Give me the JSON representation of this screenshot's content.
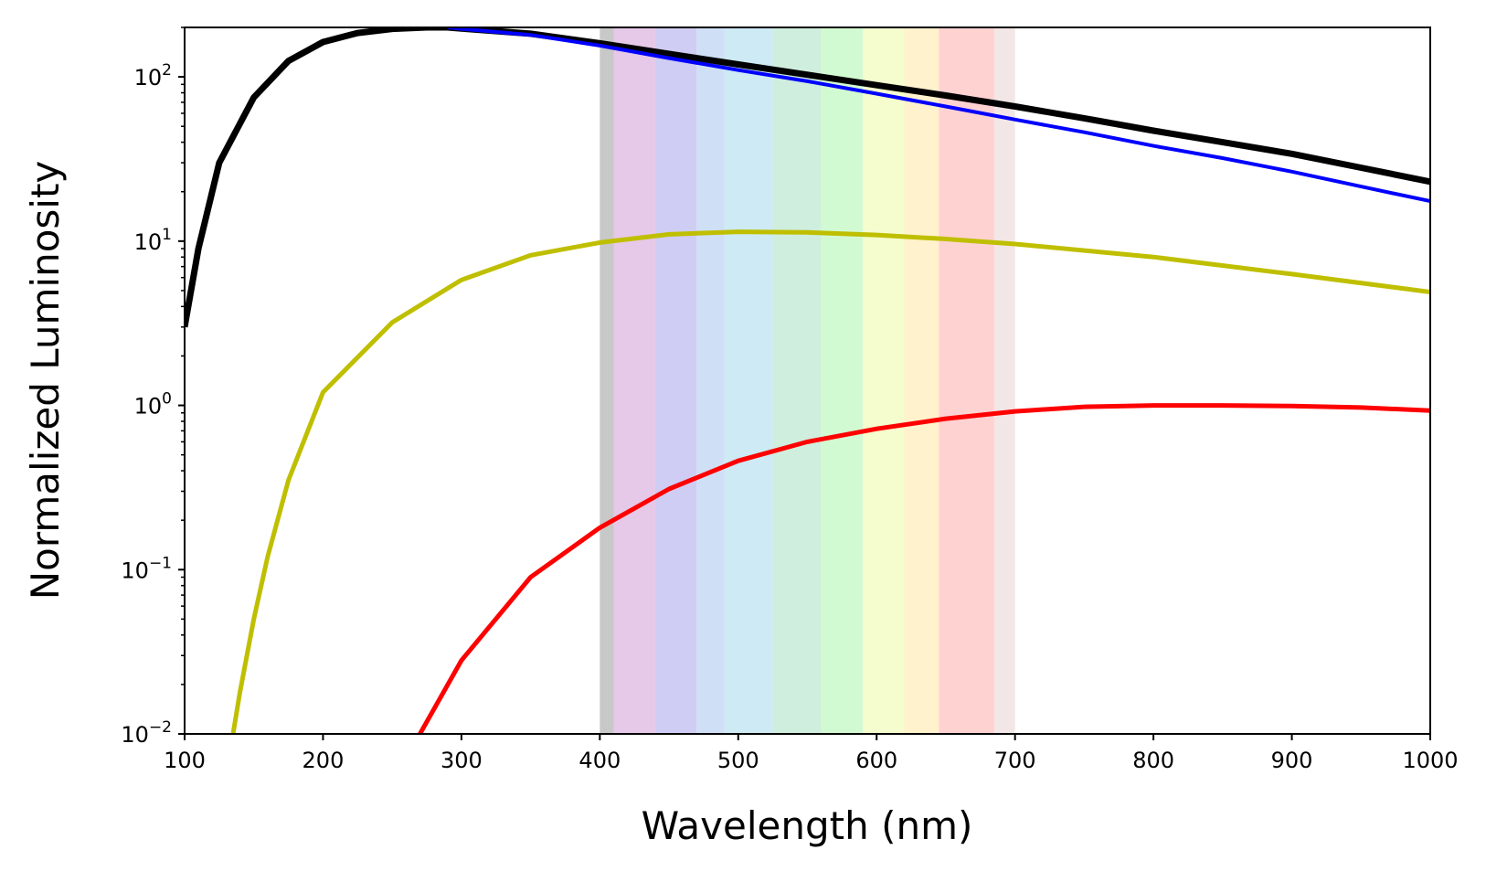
{
  "chart_data": {
    "type": "line",
    "title": "",
    "xlabel": "Wavelength (nm)",
    "ylabel": "Normalized Luminosity",
    "xlim": [
      100,
      1000
    ],
    "ylim": [
      0.01,
      200
    ],
    "yscale": "log",
    "grid": false,
    "legend": "none",
    "x_ticks": [
      {
        "value": 100,
        "label": "100"
      },
      {
        "value": 200,
        "label": "200"
      },
      {
        "value": 300,
        "label": "300"
      },
      {
        "value": 400,
        "label": "400"
      },
      {
        "value": 500,
        "label": "500"
      },
      {
        "value": 600,
        "label": "600"
      },
      {
        "value": 700,
        "label": "700"
      },
      {
        "value": 800,
        "label": "800"
      },
      {
        "value": 900,
        "label": "900"
      },
      {
        "value": 1000,
        "label": "1000"
      }
    ],
    "y_ticks": [
      {
        "value": 0.01,
        "base": "10",
        "exp": "−2"
      },
      {
        "value": 0.1,
        "base": "10",
        "exp": "−1"
      },
      {
        "value": 1,
        "base": "10",
        "exp": "0"
      },
      {
        "value": 10,
        "base": "10",
        "exp": "1"
      },
      {
        "value": 100,
        "base": "10",
        "exp": "2"
      }
    ],
    "visible_band": {
      "range": [
        400,
        700
      ],
      "colors": [
        {
          "from": 400,
          "to": 410,
          "color": "#c8c8c8"
        },
        {
          "from": 410,
          "to": 440,
          "color": "#e6c8e8"
        },
        {
          "from": 440,
          "to": 470,
          "color": "#cfcdf3"
        },
        {
          "from": 470,
          "to": 490,
          "color": "#cfe0f6"
        },
        {
          "from": 490,
          "to": 525,
          "color": "#cdeaf5"
        },
        {
          "from": 525,
          "to": 560,
          "color": "#cfeedd"
        },
        {
          "from": 560,
          "to": 590,
          "color": "#d2fad2"
        },
        {
          "from": 590,
          "to": 620,
          "color": "#f5fccd"
        },
        {
          "from": 620,
          "to": 645,
          "color": "#fff2cc"
        },
        {
          "from": 645,
          "to": 685,
          "color": "#ffd2d2"
        },
        {
          "from": 685,
          "to": 700,
          "color": "#f3e6e6"
        }
      ]
    },
    "series": [
      {
        "color": "#000000",
        "stroke_width": 7,
        "x": [
          100,
          110,
          125,
          150,
          175,
          200,
          225,
          250,
          275,
          290,
          300,
          350,
          400,
          450,
          500,
          550,
          600,
          650,
          700,
          750,
          800,
          850,
          900,
          950,
          1000
        ],
        "y": [
          3.0,
          9.0,
          30,
          75,
          125,
          163,
          185,
          196,
          200,
          200,
          197,
          183,
          160,
          138,
          119,
          103,
          89,
          77,
          66,
          56,
          47,
          40,
          34,
          28,
          23
        ]
      },
      {
        "color": "#0000ff",
        "stroke_width": 4,
        "x": [
          290,
          300,
          350,
          400,
          450,
          500,
          550,
          600,
          650,
          700,
          750,
          800,
          850,
          900,
          950,
          1000
        ],
        "y": [
          200,
          196,
          180,
          155,
          130,
          110,
          94,
          79,
          66,
          55,
          46,
          38,
          32,
          26.5,
          21.5,
          17.5
        ]
      },
      {
        "color": "#bfbf00",
        "stroke_width": 5,
        "x": [
          135,
          140,
          150,
          160,
          175,
          200,
          250,
          300,
          350,
          400,
          450,
          500,
          550,
          600,
          650,
          700,
          800,
          900,
          1000
        ],
        "y": [
          0.01,
          0.018,
          0.05,
          0.12,
          0.35,
          1.2,
          3.2,
          5.8,
          8.2,
          9.8,
          11.0,
          11.4,
          11.3,
          10.9,
          10.3,
          9.6,
          8.0,
          6.3,
          4.9
        ]
      },
      {
        "color": "#ff0000",
        "stroke_width": 5,
        "x": [
          270,
          300,
          350,
          400,
          450,
          500,
          550,
          600,
          650,
          700,
          750,
          800,
          850,
          900,
          950,
          1000
        ],
        "y": [
          0.01,
          0.028,
          0.09,
          0.18,
          0.31,
          0.46,
          0.6,
          0.72,
          0.83,
          0.92,
          0.98,
          1.0,
          1.0,
          0.99,
          0.97,
          0.93
        ]
      }
    ]
  }
}
